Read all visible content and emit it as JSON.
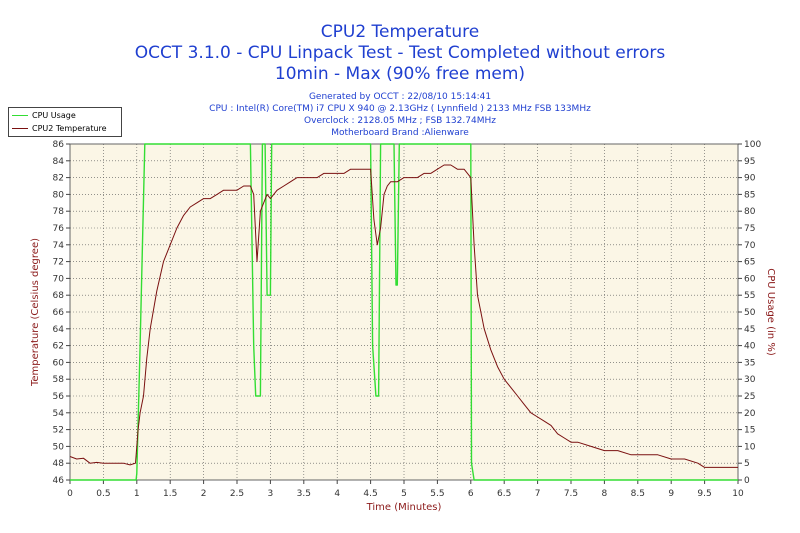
{
  "header": {
    "title": "CPU2 Temperature",
    "subtitle1": "OCCT 3.1.0 - CPU Linpack Test - Test Completed without errors",
    "subtitle2": "10min - Max (90% free mem)"
  },
  "info": {
    "generated": "Generated by OCCT : 22/08/10 15:14:41",
    "cpu": "CPU : Intel(R) Core(TM) i7 CPU X 940 @ 2.13GHz ( Lynnfield ) 2133 MHz FSB 133MHz",
    "overclock": "Overclock : 2128.05 MHz ; FSB 132.74MHz",
    "motherboard": "Motherboard Brand :Alienware"
  },
  "legend": {
    "items": [
      {
        "label": "CPU Usage",
        "color": "#33dd33"
      },
      {
        "label": "CPU2 Temperature",
        "color": "#7a1010"
      }
    ]
  },
  "colors": {
    "plot_background": "#fbf6e6",
    "grid": "#555555",
    "axis_text": "#8b1a1a",
    "title": "#1f3fd0",
    "cpu_usage": "#33dd33",
    "temperature": "#7a1010"
  },
  "chart_data": {
    "type": "line",
    "xlabel": "Time (Minutes)",
    "ylabel_left": "Temperature (Celsius degree)",
    "ylabel_right": "CPU Usage (in %)",
    "xlim": [
      0,
      10
    ],
    "ylim_left": [
      46,
      86
    ],
    "ylim_right": [
      0,
      100
    ],
    "x_ticks": [
      "0",
      "0.5",
      "1",
      "1.5",
      "2",
      "2.5",
      "3",
      "3.5",
      "4",
      "4.5",
      "5",
      "5.5",
      "6",
      "6.5",
      "7",
      "7.5",
      "8",
      "8.5",
      "9",
      "9.5",
      "10"
    ],
    "y_left_ticks": [
      "46",
      "48",
      "50",
      "52",
      "54",
      "56",
      "58",
      "60",
      "62",
      "64",
      "66",
      "68",
      "70",
      "72",
      "74",
      "76",
      "78",
      "80",
      "82",
      "84",
      "86"
    ],
    "y_right_ticks": [
      "0",
      "5",
      "10",
      "15",
      "20",
      "25",
      "30",
      "35",
      "40",
      "45",
      "50",
      "55",
      "60",
      "65",
      "70",
      "75",
      "80",
      "85",
      "90",
      "95",
      "100"
    ],
    "grid": true,
    "series": [
      {
        "name": "CPU Usage",
        "axis": "right",
        "x": [
          0,
          0.99,
          1.0,
          1.05,
          1.12,
          1.15,
          2.7,
          2.75,
          2.78,
          2.85,
          2.88,
          2.92,
          2.95,
          3.0,
          3.02,
          4.5,
          4.53,
          4.58,
          4.62,
          4.65,
          4.7,
          4.85,
          4.88,
          4.9,
          4.93,
          6.0,
          6.01,
          6.05,
          10
        ],
        "values": [
          0,
          0,
          2,
          40,
          100,
          100,
          100,
          40,
          25,
          25,
          100,
          100,
          55,
          55,
          100,
          100,
          40,
          25,
          25,
          100,
          100,
          100,
          58,
          58,
          100,
          100,
          5,
          0,
          0
        ]
      },
      {
        "name": "CPU2 Temperature",
        "axis": "left",
        "x": [
          0,
          0.1,
          0.2,
          0.3,
          0.4,
          0.5,
          0.6,
          0.7,
          0.8,
          0.9,
          0.98,
          1.02,
          1.05,
          1.1,
          1.15,
          1.2,
          1.3,
          1.4,
          1.5,
          1.6,
          1.7,
          1.8,
          1.9,
          2.0,
          2.1,
          2.2,
          2.3,
          2.4,
          2.5,
          2.6,
          2.7,
          2.75,
          2.8,
          2.85,
          2.9,
          2.95,
          3.0,
          3.1,
          3.2,
          3.3,
          3.4,
          3.5,
          3.6,
          3.7,
          3.8,
          3.9,
          4.0,
          4.1,
          4.2,
          4.3,
          4.4,
          4.5,
          4.55,
          4.6,
          4.65,
          4.7,
          4.75,
          4.8,
          4.9,
          5.0,
          5.1,
          5.2,
          5.3,
          5.4,
          5.5,
          5.6,
          5.7,
          5.8,
          5.9,
          6.0,
          6.05,
          6.1,
          6.2,
          6.3,
          6.4,
          6.5,
          6.6,
          6.7,
          6.8,
          6.9,
          7.0,
          7.1,
          7.2,
          7.3,
          7.4,
          7.5,
          7.6,
          7.8,
          8.0,
          8.2,
          8.4,
          8.6,
          8.8,
          9.0,
          9.2,
          9.4,
          9.5,
          9.7,
          10.0
        ],
        "values": [
          48.8,
          48.5,
          48.6,
          48.0,
          48.1,
          48.0,
          48.0,
          48.0,
          48.0,
          47.8,
          48.0,
          52.0,
          54.0,
          56.0,
          60.5,
          64.0,
          68.5,
          72.0,
          74.0,
          76.0,
          77.5,
          78.5,
          79.0,
          79.5,
          79.5,
          80.0,
          80.5,
          80.5,
          80.5,
          81.0,
          81.0,
          80.0,
          72.0,
          78.0,
          79.0,
          80.0,
          79.5,
          80.5,
          81.0,
          81.5,
          82.0,
          82.0,
          82.0,
          82.0,
          82.5,
          82.5,
          82.5,
          82.5,
          83.0,
          83.0,
          83.0,
          83.0,
          77.0,
          74.0,
          76.0,
          80.0,
          81.0,
          81.5,
          81.5,
          82.0,
          82.0,
          82.0,
          82.5,
          82.5,
          83.0,
          83.5,
          83.5,
          83.0,
          83.0,
          82.0,
          74.0,
          68.0,
          64.0,
          61.5,
          59.5,
          58.0,
          57.0,
          56.0,
          55.0,
          54.0,
          53.5,
          53.0,
          52.5,
          51.5,
          51.0,
          50.5,
          50.5,
          50.0,
          49.5,
          49.5,
          49.0,
          49.0,
          49.0,
          48.5,
          48.5,
          48.0,
          47.5,
          47.5,
          47.5
        ]
      }
    ]
  }
}
